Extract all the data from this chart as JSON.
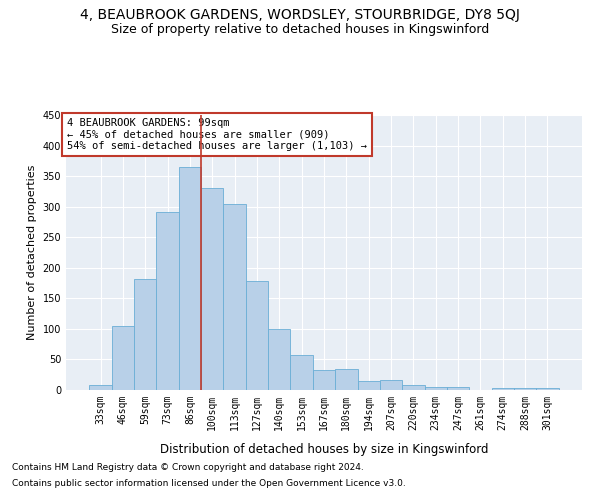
{
  "title1": "4, BEAUBROOK GARDENS, WORDSLEY, STOURBRIDGE, DY8 5QJ",
  "title2": "Size of property relative to detached houses in Kingswinford",
  "xlabel": "Distribution of detached houses by size in Kingswinford",
  "ylabel": "Number of detached properties",
  "footnote1": "Contains HM Land Registry data © Crown copyright and database right 2024.",
  "footnote2": "Contains public sector information licensed under the Open Government Licence v3.0.",
  "categories": [
    "33sqm",
    "46sqm",
    "59sqm",
    "73sqm",
    "86sqm",
    "100sqm",
    "113sqm",
    "127sqm",
    "140sqm",
    "153sqm",
    "167sqm",
    "180sqm",
    "194sqm",
    "207sqm",
    "220sqm",
    "234sqm",
    "247sqm",
    "261sqm",
    "274sqm",
    "288sqm",
    "301sqm"
  ],
  "values": [
    9,
    104,
    182,
    291,
    365,
    330,
    304,
    178,
    100,
    58,
    33,
    35,
    14,
    17,
    9,
    5,
    5,
    0,
    4,
    4,
    3
  ],
  "bar_color": "#b8d0e8",
  "bar_edge_color": "#6aaed6",
  "annotation_text": "4 BEAUBROOK GARDENS: 99sqm\n← 45% of detached houses are smaller (909)\n54% of semi-detached houses are larger (1,103) →",
  "annotation_box_color": "#ffffff",
  "annotation_box_edge_color": "#c0392b",
  "vline_x": 4.5,
  "vline_color": "#c0392b",
  "ylim": [
    0,
    450
  ],
  "yticks": [
    0,
    50,
    100,
    150,
    200,
    250,
    300,
    350,
    400,
    450
  ],
  "bg_color": "#ffffff",
  "plot_bg_color": "#e8eef5",
  "grid_color": "#ffffff",
  "title1_fontsize": 10,
  "title2_fontsize": 9,
  "xlabel_fontsize": 8.5,
  "ylabel_fontsize": 8,
  "tick_fontsize": 7,
  "annotation_fontsize": 7.5,
  "footnote_fontsize": 6.5
}
